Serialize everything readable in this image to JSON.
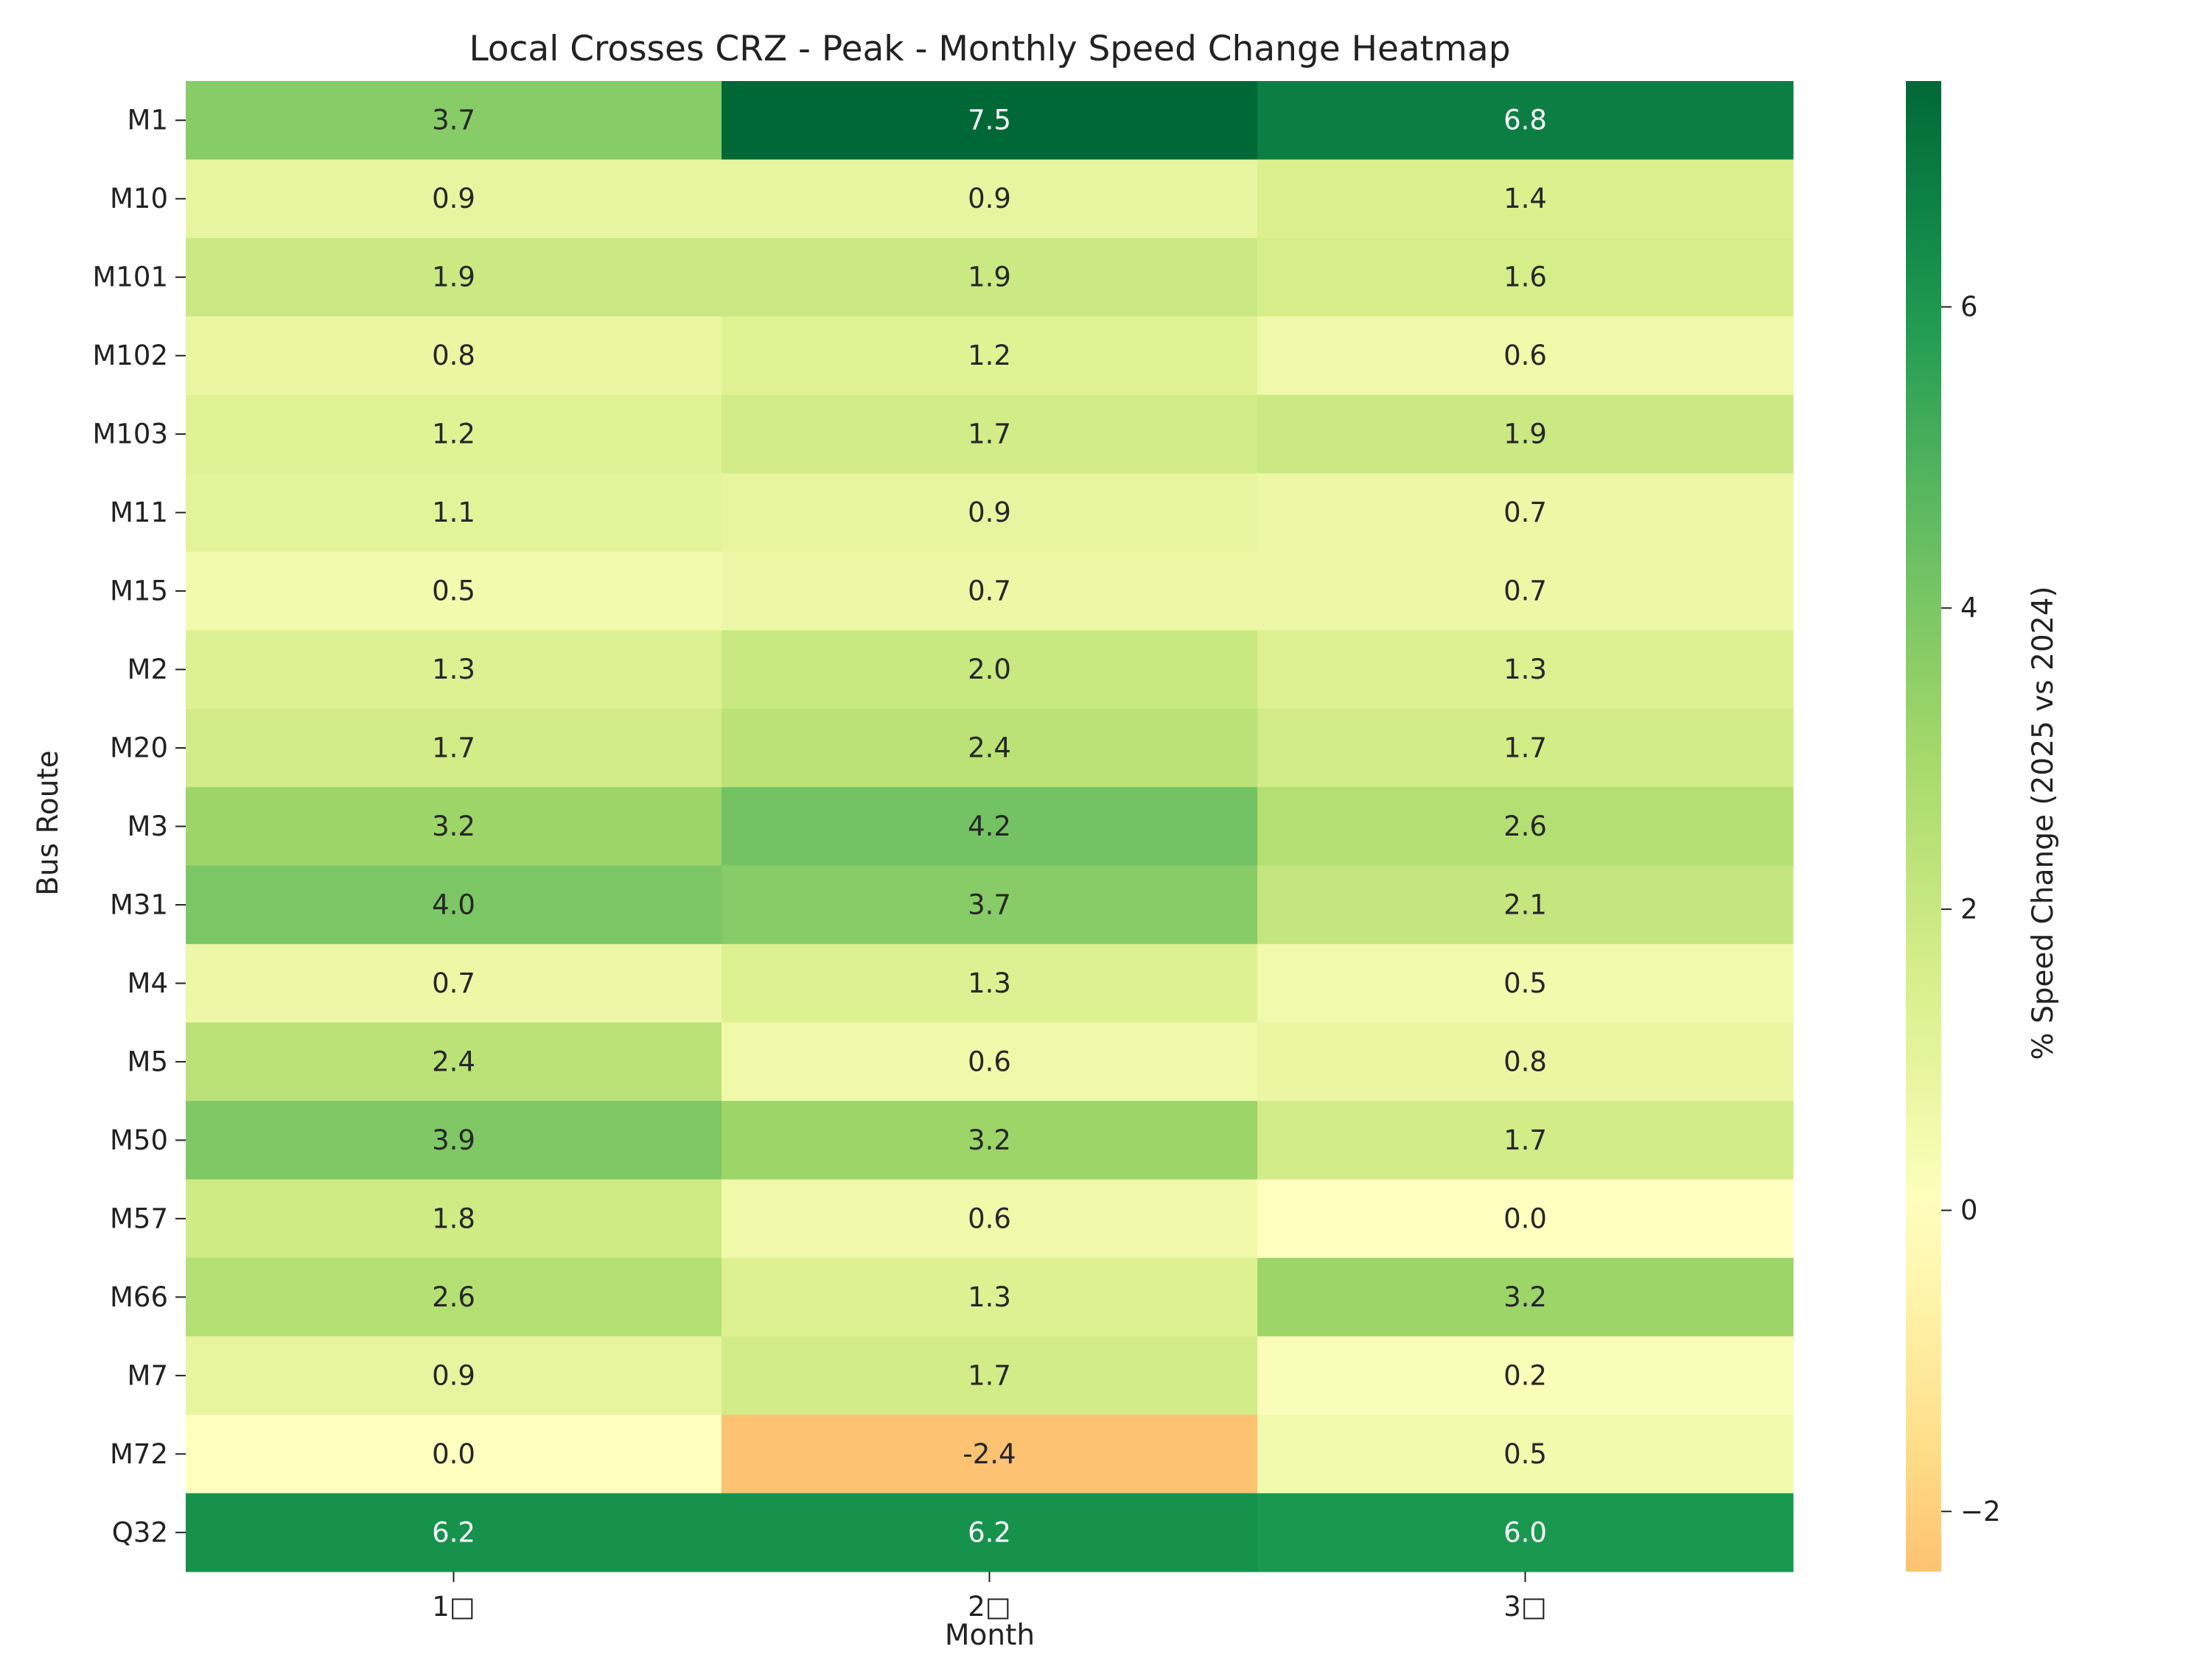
{
  "chart_data": {
    "type": "heatmap",
    "title": "Local Crosses CRZ - Peak - Monthly Speed Change Heatmap",
    "xlabel": "Month",
    "ylabel": "Bus Route",
    "x_categories": [
      "1□",
      "2□",
      "3□"
    ],
    "y_categories": [
      "M1",
      "M10",
      "M101",
      "M102",
      "M103",
      "M11",
      "M15",
      "M2",
      "M20",
      "M3",
      "M31",
      "M4",
      "M5",
      "M50",
      "M57",
      "M66",
      "M7",
      "M72",
      "Q32"
    ],
    "values": [
      [
        3.7,
        7.5,
        6.8
      ],
      [
        0.9,
        0.9,
        1.4
      ],
      [
        1.9,
        1.9,
        1.6
      ],
      [
        0.8,
        1.2,
        0.6
      ],
      [
        1.2,
        1.7,
        1.9
      ],
      [
        1.1,
        0.9,
        0.7
      ],
      [
        0.5,
        0.7,
        0.7
      ],
      [
        1.3,
        2.0,
        1.3
      ],
      [
        1.7,
        2.4,
        1.7
      ],
      [
        3.2,
        4.2,
        2.6
      ],
      [
        4.0,
        3.7,
        2.1
      ],
      [
        0.7,
        1.3,
        0.5
      ],
      [
        2.4,
        0.6,
        0.8
      ],
      [
        3.9,
        3.2,
        1.7
      ],
      [
        1.8,
        0.6,
        0.0
      ],
      [
        2.6,
        1.3,
        3.2
      ],
      [
        0.9,
        1.7,
        0.2
      ],
      [
        0.0,
        -2.4,
        0.5
      ],
      [
        6.2,
        6.2,
        6.0
      ]
    ],
    "colorbar": {
      "label": "% Speed Change (2025 vs 2024)",
      "range": [
        -2.4,
        7.5
      ],
      "center": 0,
      "ticks": [
        -2,
        0,
        2,
        4,
        6
      ],
      "tick_labels": [
        "−2",
        "0",
        "2",
        "4",
        "6"
      ],
      "colormap": "RdYlGn",
      "colors": [
        "#a50026",
        "#d73027",
        "#f46d43",
        "#fdae61",
        "#fee08b",
        "#ffffbf",
        "#d9ef8b",
        "#a6d96a",
        "#66bd63",
        "#1a9850",
        "#006837"
      ]
    }
  }
}
